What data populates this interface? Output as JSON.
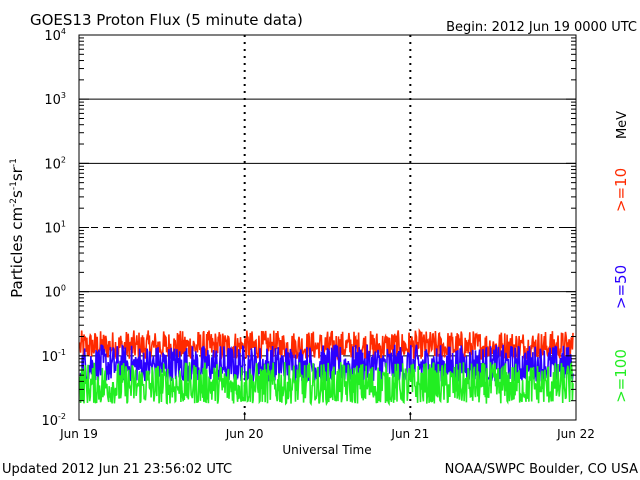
{
  "header": {
    "title": "GOES13 Proton Flux (5 minute data)",
    "begin": "Begin: 2012 Jun 19 0000 UTC"
  },
  "footer": {
    "updated": "Updated 2012 Jun 21 23:56:02 UTC",
    "credit": "NOAA/SWPC Boulder, CO USA"
  },
  "chart_data": {
    "type": "line",
    "title": "GOES13 Proton Flux (5 minute data)",
    "xlabel": "Universal Time",
    "ylabel_parts": {
      "base": "Particles cm",
      "e1": "-2",
      "s": "s",
      "e2": "-1",
      "sr": "sr",
      "e3": "-1"
    },
    "yscale": "log",
    "ylim": [
      0.01,
      10000
    ],
    "x_ticks": [
      "Jun 19",
      "Jun 20",
      "Jun 21",
      "Jun 22"
    ],
    "y_ticks": [
      {
        "base": "10",
        "exp": "-2",
        "value": 0.01
      },
      {
        "base": "10",
        "exp": "-1",
        "value": 0.1
      },
      {
        "base": "10",
        "exp": "0",
        "value": 1
      },
      {
        "base": "10",
        "exp": "1",
        "value": 10
      },
      {
        "base": "10",
        "exp": "2",
        "value": 100
      },
      {
        "base": "10",
        "exp": "3",
        "value": 1000
      },
      {
        "base": "10",
        "exp": "4",
        "value": 10000
      }
    ],
    "unit_label": "MeV",
    "series": [
      {
        "name": ">=10",
        "color": "#ff2a00",
        "typical_range": [
          0.09,
          0.25
        ]
      },
      {
        "name": ">=50",
        "color": "#2a00ff",
        "typical_range": [
          0.04,
          0.15
        ]
      },
      {
        "name": ">=100",
        "color": "#22ee22",
        "typical_range": [
          0.018,
          0.08
        ]
      }
    ],
    "threshold_lines": [
      {
        "value": 10,
        "style": "dashed"
      },
      {
        "value": 0.1,
        "style": "dashed"
      }
    ]
  }
}
